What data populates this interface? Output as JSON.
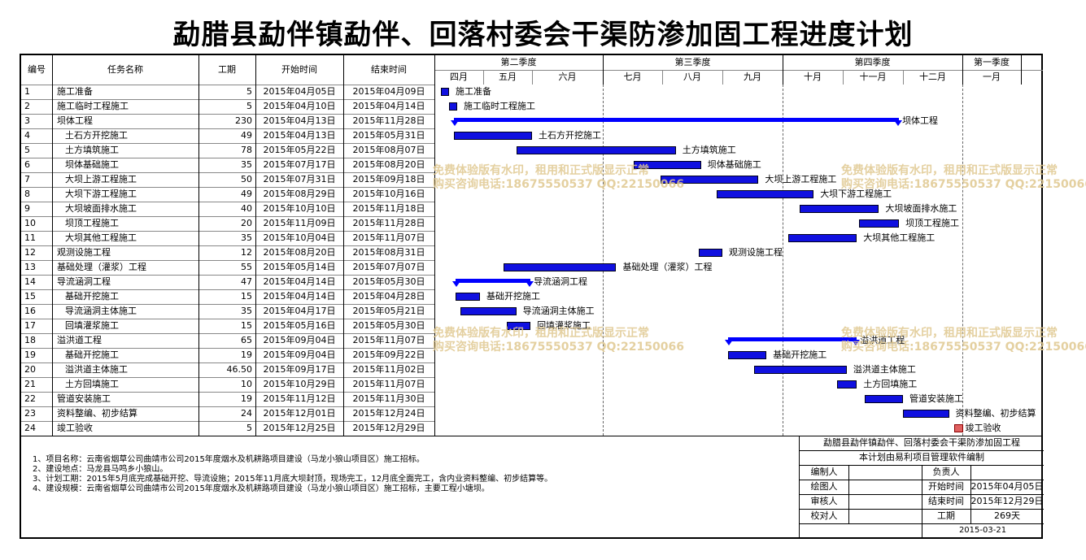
{
  "title": "勐腊县勐伴镇勐伴、回落村委会干渠防渗加固工程进度计划",
  "columns": {
    "id": "编号",
    "name": "任务名称",
    "duration": "工期",
    "start": "开始时间",
    "end": "结束时间"
  },
  "quarters": [
    "第二季度",
    "第三季度",
    "第四季度",
    "第一季度"
  ],
  "months": [
    "四月",
    "五月",
    "六月",
    "七月",
    "八月",
    "九月",
    "十月",
    "十一月",
    "十二月",
    "一月"
  ],
  "tasks": [
    {
      "id": "1",
      "name": "施工准备",
      "indent": 0,
      "duration": "5",
      "start": "2015年04月05日",
      "end": "2015年04月09日",
      "type": "task"
    },
    {
      "id": "2",
      "name": "施工临时工程施工",
      "indent": 0,
      "duration": "5",
      "start": "2015年04月10日",
      "end": "2015年04月14日",
      "type": "task"
    },
    {
      "id": "3",
      "name": "坝体工程",
      "indent": 0,
      "duration": "230",
      "start": "2015年04月13日",
      "end": "2015年11月28日",
      "type": "summary"
    },
    {
      "id": "4",
      "name": "土石方开挖施工",
      "indent": 1,
      "duration": "49",
      "start": "2015年04月13日",
      "end": "2015年05月31日",
      "type": "task"
    },
    {
      "id": "5",
      "name": "土方填筑施工",
      "indent": 1,
      "duration": "78",
      "start": "2015年05月22日",
      "end": "2015年08月07日",
      "type": "task"
    },
    {
      "id": "6",
      "name": "坝体基础施工",
      "indent": 1,
      "duration": "35",
      "start": "2015年07月17日",
      "end": "2015年08月20日",
      "type": "task"
    },
    {
      "id": "7",
      "name": "大坝上游工程施工",
      "indent": 1,
      "duration": "50",
      "start": "2015年07月31日",
      "end": "2015年09月18日",
      "type": "task"
    },
    {
      "id": "8",
      "name": "大坝下游工程施工",
      "indent": 1,
      "duration": "49",
      "start": "2015年08月29日",
      "end": "2015年10月16日",
      "type": "task"
    },
    {
      "id": "9",
      "name": "大坝坡面排水施工",
      "indent": 1,
      "duration": "40",
      "start": "2015年10月10日",
      "end": "2015年11月18日",
      "type": "task"
    },
    {
      "id": "10",
      "name": "坝顶工程施工",
      "indent": 1,
      "duration": "20",
      "start": "2015年11月09日",
      "end": "2015年11月28日",
      "type": "task"
    },
    {
      "id": "11",
      "name": "大坝其他工程施工",
      "indent": 1,
      "duration": "35",
      "start": "2015年10月04日",
      "end": "2015年11月07日",
      "type": "task"
    },
    {
      "id": "12",
      "name": "观测设施工程",
      "indent": 0,
      "duration": "12",
      "start": "2015年08月20日",
      "end": "2015年08月31日",
      "type": "task"
    },
    {
      "id": "13",
      "name": "基础处理（灌浆）工程",
      "indent": 0,
      "duration": "55",
      "start": "2015年05月14日",
      "end": "2015年07月07日",
      "type": "task"
    },
    {
      "id": "14",
      "name": "导流涵洞工程",
      "indent": 0,
      "duration": "47",
      "start": "2015年04月14日",
      "end": "2015年05月30日",
      "type": "summary"
    },
    {
      "id": "15",
      "name": "基础开挖施工",
      "indent": 1,
      "duration": "15",
      "start": "2015年04月14日",
      "end": "2015年04月28日",
      "type": "task"
    },
    {
      "id": "16",
      "name": "导流涵洞主体施工",
      "indent": 1,
      "duration": "35",
      "start": "2015年04月17日",
      "end": "2015年05月21日",
      "type": "task"
    },
    {
      "id": "17",
      "name": "回填灌浆施工",
      "indent": 1,
      "duration": "15",
      "start": "2015年05月16日",
      "end": "2015年05月30日",
      "type": "task"
    },
    {
      "id": "18",
      "name": "溢洪道工程",
      "indent": 0,
      "duration": "65",
      "start": "2015年09月04日",
      "end": "2015年11月07日",
      "type": "summary"
    },
    {
      "id": "19",
      "name": "基础开挖施工",
      "indent": 1,
      "duration": "19",
      "start": "2015年09月04日",
      "end": "2015年09月22日",
      "type": "task"
    },
    {
      "id": "20",
      "name": "溢洪道主体施工",
      "indent": 1,
      "duration": "46.50",
      "start": "2015年09月17日",
      "end": "2015年11月02日",
      "type": "task"
    },
    {
      "id": "21",
      "name": "土方回填施工",
      "indent": 1,
      "duration": "10",
      "start": "2015年10月29日",
      "end": "2015年11月07日",
      "type": "task"
    },
    {
      "id": "22",
      "name": "管道安装施工",
      "indent": 0,
      "duration": "19",
      "start": "2015年11月12日",
      "end": "2015年11月30日",
      "type": "task"
    },
    {
      "id": "23",
      "name": "资料整编、初步结算",
      "indent": 0,
      "duration": "24",
      "start": "2015年12月01日",
      "end": "2015年12月24日",
      "type": "task"
    },
    {
      "id": "24",
      "name": "竣工验收",
      "indent": 0,
      "duration": "5",
      "start": "2015年12月25日",
      "end": "2015年12月29日",
      "type": "milestone"
    }
  ],
  "notes": [
    "1、项目名称：云南省烟草公司曲靖市公司2015年度烟水及机耕路项目建设（马龙小狼山项目区）施工招标。",
    "2、建设地点：马龙县马鸣乡小狼山。",
    "3、计划工期：2015年5月底完成基础开挖、导流设施；2015年11月底大坝封顶，现场完工，12月底全面完工，含内业资料整编、初步结算等。",
    "4、建设规模：云南省烟草公司曲靖市公司2015年度烟水及机耕路项目建设（马龙小狼山项目区）施工招标，主要工程小塘坝。"
  ],
  "infobox": {
    "project": "勐腊县勐伴镇勐伴、回落村委会干渠防渗加固工程",
    "software": "本计划由易利项目管理软件编制",
    "editor_label": "编制人",
    "editor": "",
    "manager_label": "负责人",
    "manager": "",
    "drawer_label": "绘图人",
    "drawer": "",
    "start_label": "开始时间",
    "start": "2015年04月05日",
    "reviewer_label": "审核人",
    "reviewer": "",
    "end_label": "结束时间",
    "end": "2015年12月29日",
    "checker_label": "校对人",
    "checker": "",
    "duration_label": "工期",
    "duration": "269天",
    "date": "2015-03-21"
  },
  "watermark": {
    "line1": "免费体验版有水印，租用和正式版显示正常",
    "line2": "购买咨询电话:18675550537 QQ:22150066"
  },
  "colors": {
    "bar": "#1010e0",
    "summary": "#0000ff",
    "milestone": "#e06060",
    "watermark": "#e0c890"
  }
}
